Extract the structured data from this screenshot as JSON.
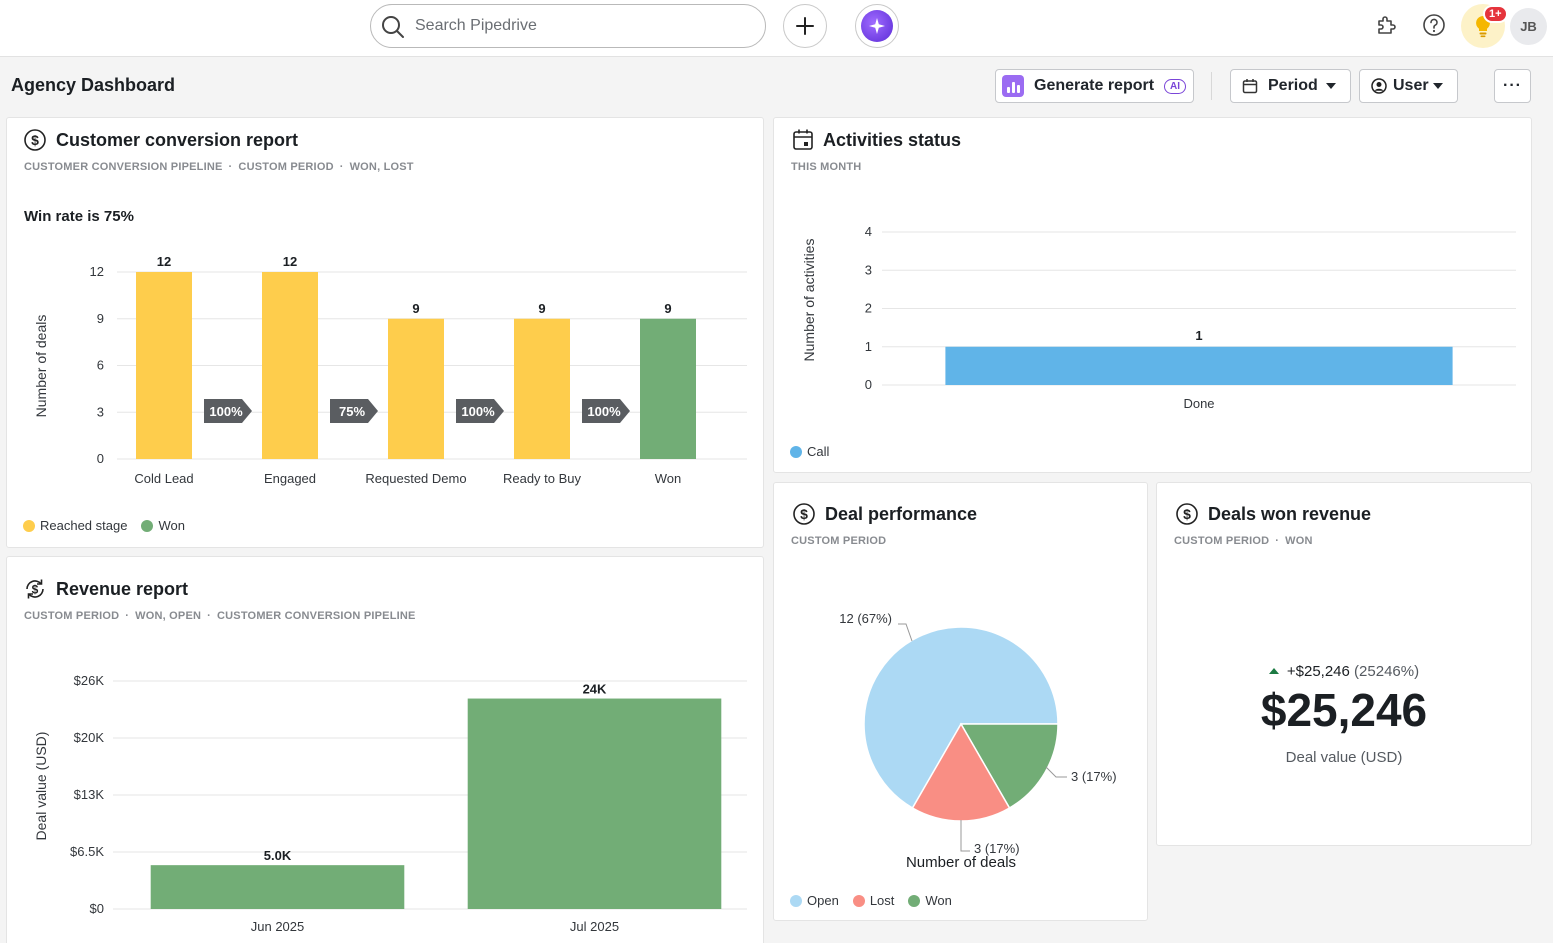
{
  "topbar": {
    "search_placeholder": "Search Pipedrive",
    "icons": [
      "search-icon",
      "plus-icon",
      "ai-sparkle-icon",
      "puzzle-icon",
      "help-icon",
      "lightbulb-icon"
    ],
    "notification_badge": "1+",
    "avatar_initials": "JB"
  },
  "header": {
    "title": "Agency Dashboard",
    "generate_report_label": "Generate report",
    "ai_tag": "AI",
    "period_label": "Period",
    "user_label": "User",
    "more_label": "···"
  },
  "conversion": {
    "title": "Customer conversion report",
    "filters": [
      "CUSTOMER CONVERSION PIPELINE",
      "CUSTOM PERIOD",
      "WON, LOST"
    ],
    "win_rate_text": "Win rate is 75%",
    "legend": [
      {
        "label": "Reached stage",
        "color": "#fecd4c"
      },
      {
        "label": "Won",
        "color": "#72ad76"
      }
    ]
  },
  "activities": {
    "title": "Activities status",
    "filters": [
      "THIS MONTH"
    ],
    "legend": [
      {
        "label": "Call",
        "color": "#60b4e8"
      }
    ]
  },
  "revenue": {
    "title": "Revenue report",
    "filters": [
      "CUSTOM PERIOD",
      "WON, OPEN",
      "CUSTOMER CONVERSION PIPELINE"
    ]
  },
  "deal_performance": {
    "title": "Deal performance",
    "filters": [
      "CUSTOM PERIOD"
    ],
    "legend": [
      {
        "label": "Open",
        "color": "#acd9f4"
      },
      {
        "label": "Lost",
        "color": "#f98e84"
      },
      {
        "label": "Won",
        "color": "#72ad76"
      }
    ]
  },
  "deals_won": {
    "title": "Deals won revenue",
    "filters": [
      "CUSTOM PERIOD",
      "WON"
    ],
    "change": "+$25,246",
    "change_pct": "(25246%)",
    "value": "$25,246",
    "label": "Deal value (USD)"
  },
  "chart_data": [
    {
      "type": "bar",
      "title": "Customer conversion report",
      "categories": [
        "Cold Lead",
        "Engaged",
        "Requested Demo",
        "Ready to Buy",
        "Won"
      ],
      "values": [
        12,
        12,
        9,
        9,
        9
      ],
      "colors": [
        "#fecd4c",
        "#fecd4c",
        "#fecd4c",
        "#fecd4c",
        "#72ad76"
      ],
      "value_labels": [
        "12",
        "12",
        "9",
        "9",
        "9"
      ],
      "conversion_rates": [
        "100%",
        "75%",
        "100%",
        "100%"
      ],
      "ylabel": "Number of deals",
      "ylim": [
        0,
        12
      ],
      "yticks": [
        0,
        3,
        6,
        9,
        12
      ],
      "grid": true
    },
    {
      "type": "bar",
      "title": "Activities status",
      "categories": [
        "Done"
      ],
      "series": [
        {
          "name": "Call",
          "values": [
            1
          ]
        }
      ],
      "value_labels": [
        "1"
      ],
      "ylabel": "Number of activities",
      "ylim": [
        0,
        4
      ],
      "yticks": [
        0,
        1,
        2,
        3,
        4
      ],
      "color": "#60b4e8",
      "grid": true
    },
    {
      "type": "bar",
      "title": "Revenue report",
      "categories": [
        "Jun 2025",
        "Jul 2025"
      ],
      "values": [
        5000,
        24000
      ],
      "value_labels": [
        "5.0K",
        "24K"
      ],
      "ylabel": "Deal value (USD)",
      "ylim": [
        0,
        26000
      ],
      "yticks": [
        0,
        6500,
        13000,
        19500,
        26000
      ],
      "ytick_labels": [
        "$0",
        "$6.5K",
        "$13K",
        "$20K",
        "$26K"
      ],
      "color": "#72ad76",
      "grid": true
    },
    {
      "type": "pie",
      "title": "Deal performance",
      "xlabel": "Number of deals",
      "slices": [
        {
          "name": "Open",
          "value": 12,
          "label": "12 (67%)",
          "color": "#acd9f4"
        },
        {
          "name": "Won",
          "value": 3,
          "label": "3 (17%)",
          "color": "#72ad76"
        },
        {
          "name": "Lost",
          "value": 3,
          "label": "3 (17%)",
          "color": "#f98e84"
        }
      ]
    }
  ]
}
